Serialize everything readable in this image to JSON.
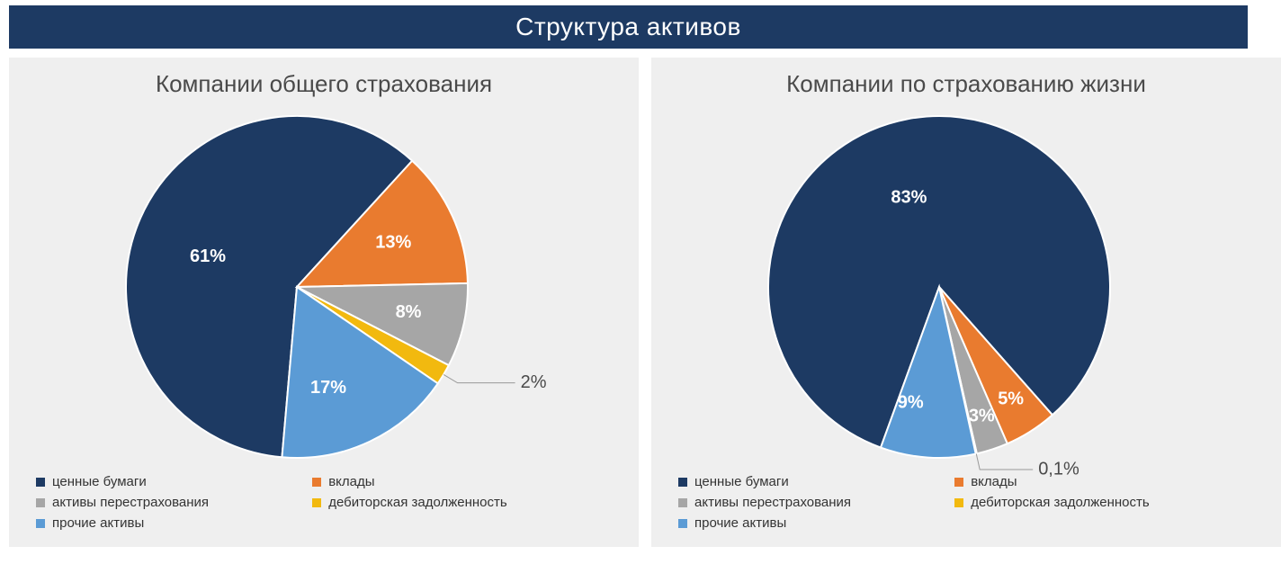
{
  "header": {
    "title": "Структура активов",
    "bg_color": "#1d3a63",
    "text_color": "#ffffff",
    "fontsize": 28
  },
  "panel_bg": "#efefef",
  "page_bg": "#ffffff",
  "legend_fontsize": 15,
  "title_fontsize": 26,
  "title_color": "#4a4a4a",
  "slice_label_color": "#ffffff",
  "slice_label_fontsize": 20,
  "callout_label_color": "#4a4a4a",
  "slice_border": "#ffffff",
  "slice_border_width": 2,
  "charts": [
    {
      "type": "pie",
      "title": "Компании общего страхования",
      "start_angle": 185,
      "slices": [
        {
          "key": "securities",
          "label": "ценные бумаги",
          "value": 61,
          "display": "61%",
          "color": "#1d3a63",
          "label_inside": true,
          "label_r": 0.55,
          "label_angle_offset": -5
        },
        {
          "key": "deposits",
          "label": "вклады",
          "value": 13,
          "display": "13%",
          "color": "#e97b2f",
          "label_inside": true,
          "label_r": 0.62
        },
        {
          "key": "reinsurance",
          "label": "активы перестрахования",
          "value": 8,
          "display": "8%",
          "color": "#a6a6a6",
          "label_inside": true,
          "label_r": 0.67
        },
        {
          "key": "receivables",
          "label": "дебиторская задолженность",
          "value": 2,
          "display": "2%",
          "color": "#f2b90f",
          "label_inside": false,
          "callout_dx": 70
        },
        {
          "key": "other",
          "label": "прочие активы",
          "value": 17,
          "display": "17%",
          "color": "#5b9bd5",
          "label_inside": true,
          "label_r": 0.62,
          "label_angle_offset": 8
        }
      ],
      "legend": [
        {
          "swatch": "#1d3a63",
          "text": "ценные бумаги"
        },
        {
          "swatch": "#e97b2f",
          "text": "вклады"
        },
        {
          "swatch": "#a6a6a6",
          "text": "активы перестрахования"
        },
        {
          "swatch": "#f2b90f",
          "text": "дебиторская задолженность"
        },
        {
          "swatch": "#5b9bd5",
          "text": "прочие активы"
        }
      ]
    },
    {
      "type": "pie",
      "title": "Компании по страхованию жизни",
      "start_angle": 200,
      "slices": [
        {
          "key": "securities",
          "label": "ценные бумаги",
          "value": 83,
          "display": "83%",
          "color": "#1d3a63",
          "label_inside": true,
          "label_r": 0.55,
          "label_angle_offset": -8
        },
        {
          "key": "deposits",
          "label": "вклады",
          "value": 5,
          "display": "5%",
          "color": "#e97b2f",
          "label_inside": true,
          "label_r": 0.78
        },
        {
          "key": "reinsurance",
          "label": "активы перестрахования",
          "value": 3,
          "display": "3%",
          "color": "#a6a6a6",
          "label_inside": true,
          "label_r": 0.8
        },
        {
          "key": "receivables",
          "label": "дебиторская задолженность",
          "value": 0.1,
          "display": "0,1%",
          "color": "#f2b90f",
          "label_inside": false,
          "callout_dx": 65
        },
        {
          "key": "other",
          "label": "прочие активы",
          "value": 9,
          "display": "9%",
          "color": "#5b9bd5",
          "label_inside": true,
          "label_r": 0.7,
          "label_angle_offset": 10
        }
      ],
      "legend": [
        {
          "swatch": "#1d3a63",
          "text": "ценные бумаги"
        },
        {
          "swatch": "#e97b2f",
          "text": "вклады"
        },
        {
          "swatch": "#a6a6a6",
          "text": "активы перестрахования"
        },
        {
          "swatch": "#f2b90f",
          "text": "дебиторская задолженность"
        },
        {
          "swatch": "#5b9bd5",
          "text": "прочие активы"
        }
      ]
    }
  ]
}
